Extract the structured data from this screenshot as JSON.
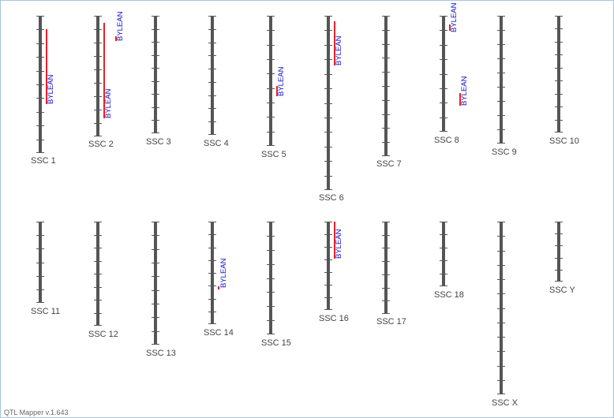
{
  "app": {
    "version_label": "QTL Mapper v.1.643"
  },
  "colors": {
    "chromosome": "#555555",
    "tick": "#555555",
    "qtl_bar": "#e8202a",
    "qtl_label": "#1515cc",
    "label": "#444444"
  },
  "chromosomes": [
    {
      "id": "ssc1",
      "label": "SSC 1"
    },
    {
      "id": "ssc2",
      "label": "SSC 2"
    },
    {
      "id": "ssc3",
      "label": "SSC 3"
    },
    {
      "id": "ssc4",
      "label": "SSC 4"
    },
    {
      "id": "ssc5",
      "label": "SSC 5"
    },
    {
      "id": "ssc6",
      "label": "SSC 6"
    },
    {
      "id": "ssc7",
      "label": "SSC 7"
    },
    {
      "id": "ssc8",
      "label": "SSC 8"
    },
    {
      "id": "ssc9",
      "label": "SSC 9"
    },
    {
      "id": "ssc10",
      "label": "SSC 10"
    },
    {
      "id": "ssc11",
      "label": "SSC 11"
    },
    {
      "id": "ssc12",
      "label": "SSC 12"
    },
    {
      "id": "ssc13",
      "label": "SSC 13"
    },
    {
      "id": "ssc14",
      "label": "SSC 14"
    },
    {
      "id": "ssc15",
      "label": "SSC 15"
    },
    {
      "id": "ssc16",
      "label": "SSC 16"
    },
    {
      "id": "ssc17",
      "label": "SSC 17"
    },
    {
      "id": "ssc18",
      "label": "SSC 18"
    },
    {
      "id": "sscx",
      "label": "SSC X"
    },
    {
      "id": "sscy",
      "label": "SSC Y"
    }
  ],
  "qtls": [
    {
      "id": "q1",
      "chromosome": "ssc1",
      "label": "BYLEAN"
    },
    {
      "id": "q2",
      "chromosome": "ssc2",
      "label": "BYLEAN"
    },
    {
      "id": "q3",
      "chromosome": "ssc2",
      "label": "BYLEAN"
    },
    {
      "id": "q4",
      "chromosome": "ssc5",
      "label": "BYLEAN"
    },
    {
      "id": "q5",
      "chromosome": "ssc6",
      "label": "BYLEAN"
    },
    {
      "id": "q6",
      "chromosome": "ssc8",
      "label": "BYLEAN"
    },
    {
      "id": "q7",
      "chromosome": "ssc8",
      "label": "BYLEAN"
    },
    {
      "id": "q8",
      "chromosome": "ssc14",
      "label": "BYLEAN"
    },
    {
      "id": "q9",
      "chromosome": "ssc16",
      "label": "BYLEAN"
    }
  ]
}
